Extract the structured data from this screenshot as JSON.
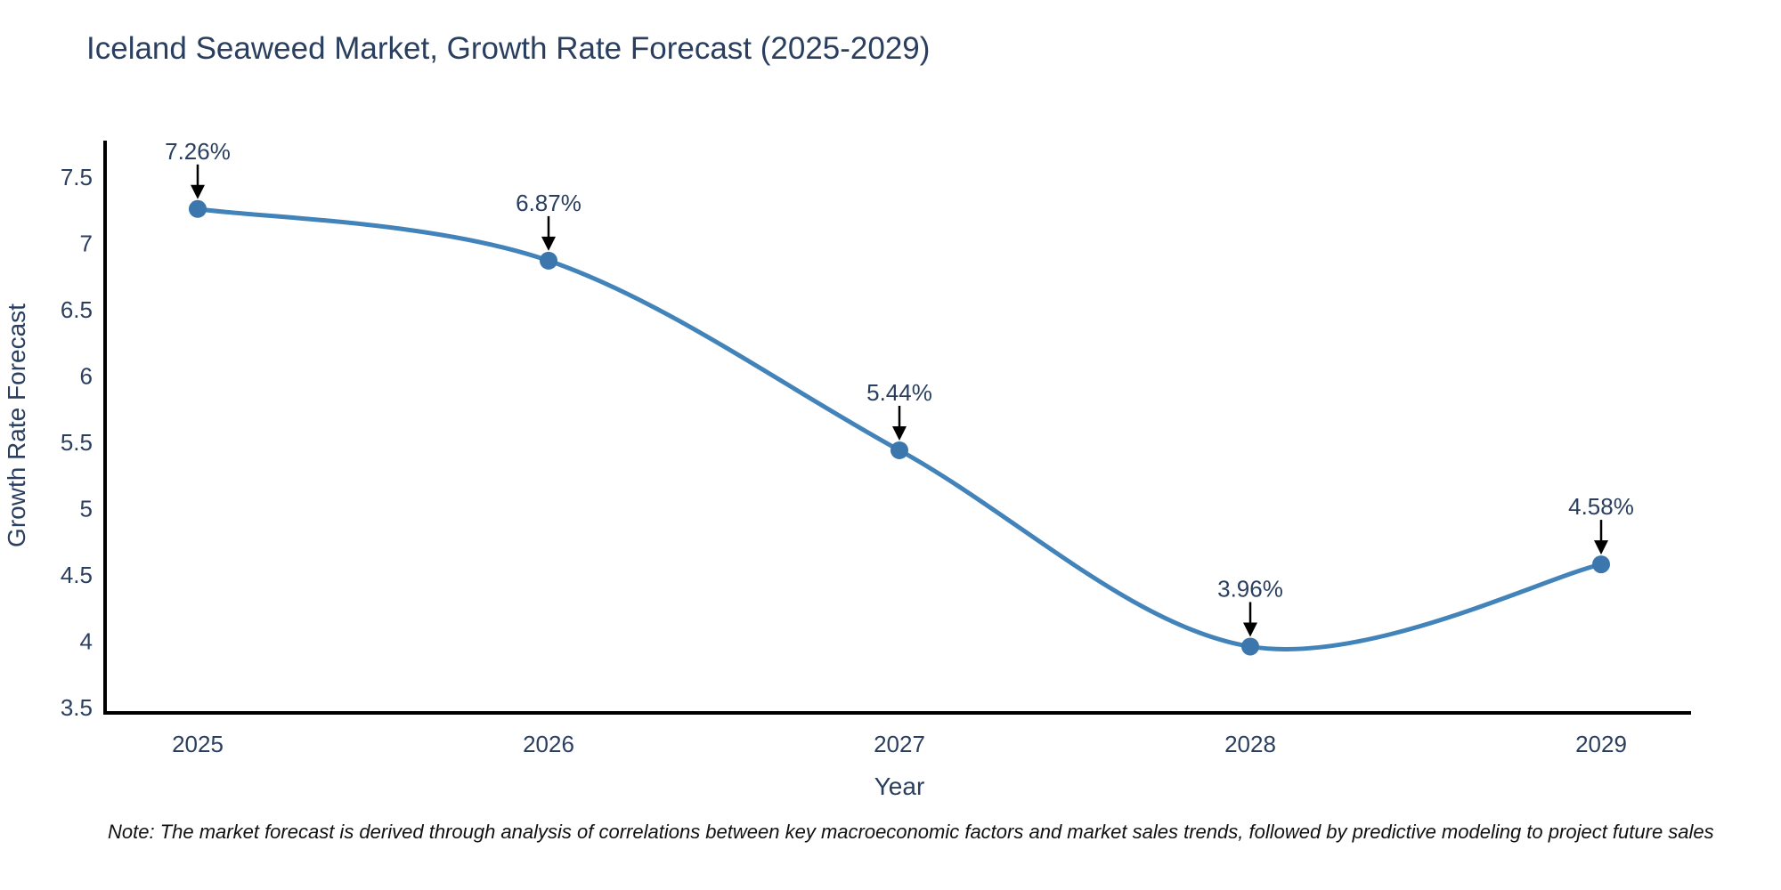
{
  "title": "Iceland Seaweed Market, Growth Rate Forecast (2025-2029)",
  "note": "Note: The market forecast is derived through analysis of correlations between key macroeconomic factors and market sales trends, followed by predictive modeling to project future sales",
  "chart_data": {
    "type": "line",
    "title": "Iceland Seaweed Market, Growth Rate Forecast (2025-2029)",
    "xlabel": "Year",
    "ylabel": "Growth Rate Forecast",
    "x": [
      "2025",
      "2026",
      "2027",
      "2028",
      "2029"
    ],
    "series": [
      {
        "name": "Growth Rate Forecast",
        "values": [
          7.26,
          6.87,
          5.44,
          3.96,
          4.58
        ]
      }
    ],
    "point_labels": [
      "7.26%",
      "6.87%",
      "5.44%",
      "3.96%",
      "4.58%"
    ],
    "yticks": [
      "3.5",
      "4",
      "4.5",
      "5",
      "5.5",
      "6",
      "6.5",
      "7",
      "7.5"
    ],
    "ylim": [
      3.5,
      7.5
    ],
    "line_shape": "spline",
    "grid": false,
    "legend_position": "none",
    "colors": {
      "line": "#4283ba",
      "marker": "#3b76ac",
      "arrow": "#000000",
      "axis_line": "#000000",
      "text": "#2a3f5f",
      "note": "#111111",
      "background": "#ffffff"
    }
  }
}
